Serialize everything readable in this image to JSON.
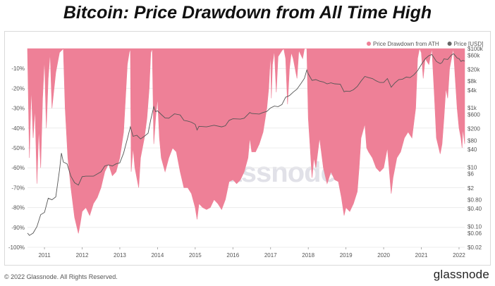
{
  "title": "Bitcoin: Price Drawdown from All Time High",
  "footer": {
    "copyright": "© 2022 Glassnode. All Rights Reserved.",
    "logo": "glassnode",
    "watermark": "glassnode"
  },
  "colors": {
    "drawdown_fill": "#ee8097",
    "price_line": "#555555",
    "grid": "#ececec"
  },
  "chart_data": {
    "type": "area",
    "title": "Bitcoin: Price Drawdown from All Time High",
    "legend": {
      "placement": "top-right",
      "items": [
        {
          "label": "Price Drawdown from ATH",
          "color": "#ee8097"
        },
        {
          "label": "Price [USD]",
          "color": "#666666"
        }
      ]
    },
    "x_ticks": [
      "2011",
      "2012",
      "2013",
      "2014",
      "2015",
      "2016",
      "2017",
      "2018",
      "2019",
      "2020",
      "2021",
      "2022"
    ],
    "xlim": [
      2010.55,
      2022.15
    ],
    "y_left": {
      "label": "",
      "range": [
        -100,
        0
      ],
      "ticks": [
        "-10%",
        "-20%",
        "-30%",
        "-40%",
        "-50%",
        "-60%",
        "-70%",
        "-80%",
        "-90%",
        "-100%"
      ]
    },
    "y_right": {
      "label": "",
      "scale": "log",
      "range": [
        0.02,
        100000
      ],
      "ticks": [
        "$100k",
        "$60k",
        "$20k",
        "$8k",
        "$4k",
        "$1k",
        "$600",
        "$200",
        "$80",
        "$40",
        "$10",
        "$6",
        "$2",
        "$0.80",
        "$0.40",
        "$0.10",
        "$0.06",
        "$0.02"
      ]
    },
    "grid": true,
    "series": [
      {
        "name": "Price Drawdown from ATH",
        "unit": "%",
        "points": [
          [
            2010.55,
            -1
          ],
          [
            2010.6,
            -55
          ],
          [
            2010.65,
            -20
          ],
          [
            2010.7,
            -45
          ],
          [
            2010.75,
            -30
          ],
          [
            2010.8,
            -68
          ],
          [
            2010.85,
            -40
          ],
          [
            2010.9,
            -60
          ],
          [
            2010.95,
            -25
          ],
          [
            2011.0,
            -5
          ],
          [
            2011.05,
            -40
          ],
          [
            2011.1,
            -15
          ],
          [
            2011.15,
            -2
          ],
          [
            2011.2,
            -30
          ],
          [
            2011.3,
            -12
          ],
          [
            2011.4,
            -2
          ],
          [
            2011.45,
            -1
          ],
          [
            2011.5,
            0
          ],
          [
            2011.55,
            -30
          ],
          [
            2011.62,
            -55
          ],
          [
            2011.7,
            -70
          ],
          [
            2011.8,
            -85
          ],
          [
            2011.9,
            -93
          ],
          [
            2011.95,
            -88
          ],
          [
            2012.0,
            -82
          ],
          [
            2012.1,
            -80
          ],
          [
            2012.2,
            -84
          ],
          [
            2012.3,
            -78
          ],
          [
            2012.4,
            -75
          ],
          [
            2012.5,
            -70
          ],
          [
            2012.6,
            -62
          ],
          [
            2012.7,
            -58
          ],
          [
            2012.8,
            -64
          ],
          [
            2012.9,
            -62
          ],
          [
            2013.0,
            -55
          ],
          [
            2013.1,
            -42
          ],
          [
            2013.2,
            -8
          ],
          [
            2013.25,
            -2
          ],
          [
            2013.28,
            0
          ],
          [
            2013.3,
            -62
          ],
          [
            2013.35,
            -50
          ],
          [
            2013.4,
            -60
          ],
          [
            2013.5,
            -70
          ],
          [
            2013.55,
            -55
          ],
          [
            2013.65,
            -45
          ],
          [
            2013.72,
            -35
          ],
          [
            2013.78,
            -20
          ],
          [
            2013.82,
            -2
          ],
          [
            2013.86,
            0
          ],
          [
            2013.9,
            -48
          ],
          [
            2013.95,
            -35
          ],
          [
            2014.0,
            -25
          ],
          [
            2014.05,
            -45
          ],
          [
            2014.1,
            -55
          ],
          [
            2014.2,
            -62
          ],
          [
            2014.3,
            -55
          ],
          [
            2014.4,
            -50
          ],
          [
            2014.5,
            -52
          ],
          [
            2014.6,
            -62
          ],
          [
            2014.7,
            -70
          ],
          [
            2014.8,
            -70
          ],
          [
            2014.9,
            -73
          ],
          [
            2015.0,
            -80
          ],
          [
            2015.05,
            -86
          ],
          [
            2015.1,
            -78
          ],
          [
            2015.2,
            -80
          ],
          [
            2015.3,
            -81
          ],
          [
            2015.4,
            -80
          ],
          [
            2015.5,
            -76
          ],
          [
            2015.6,
            -78
          ],
          [
            2015.7,
            -81
          ],
          [
            2015.8,
            -76
          ],
          [
            2015.9,
            -67
          ],
          [
            2016.0,
            -66
          ],
          [
            2016.1,
            -68
          ],
          [
            2016.2,
            -66
          ],
          [
            2016.3,
            -62
          ],
          [
            2016.4,
            -55
          ],
          [
            2016.45,
            -45
          ],
          [
            2016.5,
            -52
          ],
          [
            2016.6,
            -52
          ],
          [
            2016.7,
            -48
          ],
          [
            2016.8,
            -42
          ],
          [
            2016.9,
            -30
          ],
          [
            2016.95,
            -20
          ],
          [
            2017.0,
            -2
          ],
          [
            2017.02,
            -25
          ],
          [
            2017.05,
            -8
          ],
          [
            2017.1,
            -1
          ],
          [
            2017.15,
            -22
          ],
          [
            2017.2,
            -4
          ],
          [
            2017.3,
            -1
          ],
          [
            2017.35,
            0
          ],
          [
            2017.4,
            -5
          ],
          [
            2017.45,
            -28
          ],
          [
            2017.5,
            -10
          ],
          [
            2017.55,
            -2
          ],
          [
            2017.6,
            -5
          ],
          [
            2017.7,
            -15
          ],
          [
            2017.75,
            -1
          ],
          [
            2017.85,
            -5
          ],
          [
            2017.9,
            0
          ],
          [
            2017.96,
            0
          ],
          [
            2018.0,
            -35
          ],
          [
            2018.05,
            -50
          ],
          [
            2018.1,
            -65
          ],
          [
            2018.15,
            -55
          ],
          [
            2018.2,
            -60
          ],
          [
            2018.3,
            -45
          ],
          [
            2018.4,
            -60
          ],
          [
            2018.5,
            -68
          ],
          [
            2018.6,
            -62
          ],
          [
            2018.7,
            -66
          ],
          [
            2018.8,
            -67
          ],
          [
            2018.88,
            -75
          ],
          [
            2018.95,
            -84
          ],
          [
            2019.0,
            -80
          ],
          [
            2019.1,
            -82
          ],
          [
            2019.2,
            -78
          ],
          [
            2019.3,
            -72
          ],
          [
            2019.35,
            -60
          ],
          [
            2019.4,
            -45
          ],
          [
            2019.5,
            -38
          ],
          [
            2019.55,
            -50
          ],
          [
            2019.6,
            -52
          ],
          [
            2019.7,
            -55
          ],
          [
            2019.8,
            -60
          ],
          [
            2019.9,
            -62
          ],
          [
            2020.0,
            -60
          ],
          [
            2020.1,
            -50
          ],
          [
            2020.2,
            -73
          ],
          [
            2020.25,
            -65
          ],
          [
            2020.35,
            -55
          ],
          [
            2020.45,
            -52
          ],
          [
            2020.55,
            -45
          ],
          [
            2020.65,
            -42
          ],
          [
            2020.75,
            -45
          ],
          [
            2020.85,
            -30
          ],
          [
            2020.9,
            -5
          ],
          [
            2020.95,
            0
          ],
          [
            2021.0,
            -2
          ],
          [
            2021.05,
            -15
          ],
          [
            2021.1,
            -5
          ],
          [
            2021.2,
            -8
          ],
          [
            2021.28,
            0
          ],
          [
            2021.35,
            -25
          ],
          [
            2021.4,
            -45
          ],
          [
            2021.5,
            -53
          ],
          [
            2021.55,
            -48
          ],
          [
            2021.6,
            -35
          ],
          [
            2021.65,
            -20
          ],
          [
            2021.7,
            -25
          ],
          [
            2021.75,
            -10
          ],
          [
            2021.85,
            0
          ],
          [
            2021.9,
            -15
          ],
          [
            2021.95,
            -30
          ],
          [
            2022.0,
            -40
          ],
          [
            2022.05,
            -45
          ],
          [
            2022.08,
            -50
          ],
          [
            2022.1,
            -40
          ],
          [
            2022.15,
            -48
          ]
        ]
      },
      {
        "name": "Price [USD]",
        "unit": "USD",
        "points": [
          [
            2010.55,
            0.06
          ],
          [
            2010.6,
            0.05
          ],
          [
            2010.7,
            0.06
          ],
          [
            2010.8,
            0.1
          ],
          [
            2010.9,
            0.25
          ],
          [
            2011.0,
            0.3
          ],
          [
            2011.1,
            0.9
          ],
          [
            2011.2,
            0.8
          ],
          [
            2011.3,
            1.0
          ],
          [
            2011.4,
            8
          ],
          [
            2011.45,
            30
          ],
          [
            2011.5,
            15
          ],
          [
            2011.6,
            13
          ],
          [
            2011.7,
            5
          ],
          [
            2011.8,
            3
          ],
          [
            2011.9,
            2.5
          ],
          [
            2012.0,
            4.8
          ],
          [
            2012.1,
            5
          ],
          [
            2012.2,
            5
          ],
          [
            2012.3,
            5
          ],
          [
            2012.5,
            7
          ],
          [
            2012.6,
            11
          ],
          [
            2012.7,
            12
          ],
          [
            2012.8,
            11
          ],
          [
            2012.9,
            13
          ],
          [
            2013.0,
            14
          ],
          [
            2013.1,
            30
          ],
          [
            2013.2,
            90
          ],
          [
            2013.28,
            230
          ],
          [
            2013.35,
            110
          ],
          [
            2013.45,
            120
          ],
          [
            2013.55,
            90
          ],
          [
            2013.65,
            110
          ],
          [
            2013.75,
            140
          ],
          [
            2013.82,
            400
          ],
          [
            2013.9,
            1100
          ],
          [
            2013.95,
            750
          ],
          [
            2014.0,
            800
          ],
          [
            2014.1,
            600
          ],
          [
            2014.2,
            460
          ],
          [
            2014.3,
            450
          ],
          [
            2014.45,
            630
          ],
          [
            2014.6,
            580
          ],
          [
            2014.7,
            380
          ],
          [
            2014.8,
            360
          ],
          [
            2014.9,
            330
          ],
          [
            2015.0,
            280
          ],
          [
            2015.05,
            180
          ],
          [
            2015.1,
            240
          ],
          [
            2015.3,
            230
          ],
          [
            2015.5,
            260
          ],
          [
            2015.7,
            230
          ],
          [
            2015.8,
            250
          ],
          [
            2015.9,
            380
          ],
          [
            2016.0,
            430
          ],
          [
            2016.2,
            420
          ],
          [
            2016.3,
            450
          ],
          [
            2016.45,
            700
          ],
          [
            2016.5,
            650
          ],
          [
            2016.7,
            620
          ],
          [
            2016.8,
            700
          ],
          [
            2016.9,
            760
          ],
          [
            2017.0,
            1000
          ],
          [
            2017.1,
            1150
          ],
          [
            2017.2,
            1100
          ],
          [
            2017.3,
            1300
          ],
          [
            2017.4,
            2300
          ],
          [
            2017.5,
            2600
          ],
          [
            2017.6,
            3400
          ],
          [
            2017.7,
            4300
          ],
          [
            2017.8,
            6500
          ],
          [
            2017.9,
            10000
          ],
          [
            2017.96,
            19000
          ],
          [
            2018.0,
            14000
          ],
          [
            2018.1,
            8500
          ],
          [
            2018.2,
            9000
          ],
          [
            2018.3,
            8000
          ],
          [
            2018.4,
            7500
          ],
          [
            2018.5,
            6500
          ],
          [
            2018.6,
            7000
          ],
          [
            2018.7,
            6500
          ],
          [
            2018.85,
            6300
          ],
          [
            2018.95,
            3500
          ],
          [
            2019.0,
            3700
          ],
          [
            2019.1,
            3600
          ],
          [
            2019.2,
            4100
          ],
          [
            2019.3,
            5300
          ],
          [
            2019.4,
            8000
          ],
          [
            2019.5,
            11500
          ],
          [
            2019.6,
            10500
          ],
          [
            2019.7,
            9800
          ],
          [
            2019.8,
            8200
          ],
          [
            2019.9,
            7200
          ],
          [
            2020.0,
            7200
          ],
          [
            2020.1,
            9800
          ],
          [
            2020.2,
            5000
          ],
          [
            2020.3,
            7000
          ],
          [
            2020.4,
            9000
          ],
          [
            2020.5,
            9300
          ],
          [
            2020.6,
            11000
          ],
          [
            2020.7,
            10500
          ],
          [
            2020.8,
            13000
          ],
          [
            2020.9,
            18000
          ],
          [
            2021.0,
            29000
          ],
          [
            2021.1,
            45000
          ],
          [
            2021.2,
            58000
          ],
          [
            2021.28,
            63000
          ],
          [
            2021.4,
            37000
          ],
          [
            2021.5,
            31000
          ],
          [
            2021.55,
            34000
          ],
          [
            2021.6,
            45000
          ],
          [
            2021.7,
            43000
          ],
          [
            2021.8,
            61000
          ],
          [
            2021.86,
            67000
          ],
          [
            2021.95,
            48000
          ],
          [
            2022.0,
            46000
          ],
          [
            2022.05,
            37000
          ],
          [
            2022.1,
            40000
          ],
          [
            2022.15,
            38000
          ]
        ]
      }
    ]
  }
}
